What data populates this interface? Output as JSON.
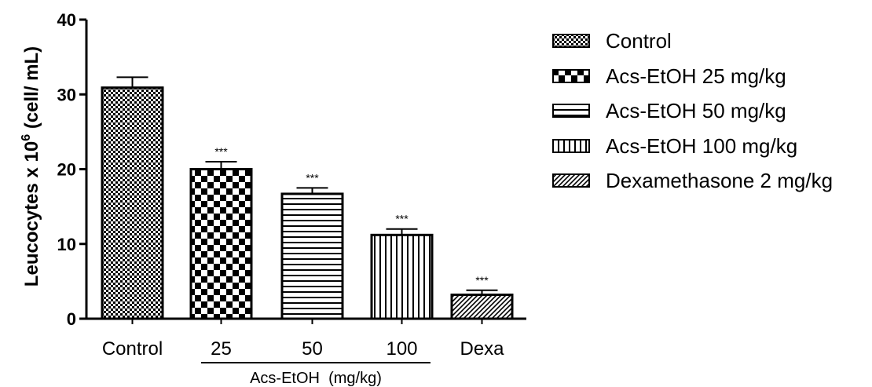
{
  "chart_data": {
    "type": "bar",
    "ylabel_prefix": "Leucocytes x 10",
    "ylabel_sup": "6",
    "ylabel_suffix": " (cell/ mL)",
    "ylim": [
      0,
      40
    ],
    "yticks": [
      0,
      10,
      20,
      30,
      40
    ],
    "categories": [
      "Control",
      "25",
      "50",
      "100",
      "Dexa"
    ],
    "values": [
      30.9,
      20.0,
      16.7,
      11.2,
      3.2
    ],
    "errors": [
      1.4,
      1.0,
      0.8,
      0.8,
      0.6
    ],
    "significance": [
      "",
      "***",
      "***",
      "***",
      "***"
    ],
    "patterns": [
      "dense-check",
      "checker",
      "horizontal",
      "vertical",
      "diagonal"
    ],
    "group_label": "Acs-EtOH  (mg/kg)",
    "legend": [
      {
        "label": "Control",
        "pattern": "dense-check"
      },
      {
        "label": "Acs-EtOH 25 mg/kg",
        "pattern": "checker"
      },
      {
        "label": "Acs-EtOH 50 mg/kg",
        "pattern": "horizontal"
      },
      {
        "label": "Acs-EtOH 100 mg/kg",
        "pattern": "vertical"
      },
      {
        "label": "Dexamethasone 2 mg/kg",
        "pattern": "diagonal"
      }
    ],
    "colors": {
      "ink": "#000000",
      "background": "#ffffff"
    }
  }
}
